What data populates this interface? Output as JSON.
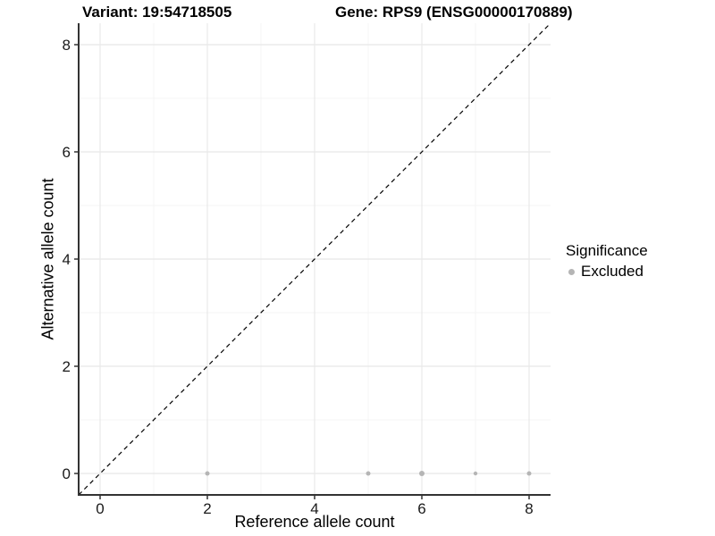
{
  "header": {
    "variant_title": "Variant: 19:54718505",
    "gene_title": "Gene: RPS9 (ENSG00000170889)"
  },
  "chart_data": {
    "type": "scatter",
    "xlabel": "Reference allele count",
    "ylabel": "Alternative allele count",
    "xlim": [
      -0.4,
      8.4
    ],
    "ylim": [
      -0.4,
      8.4
    ],
    "x_ticks": [
      0,
      2,
      4,
      6,
      8
    ],
    "y_ticks": [
      0,
      2,
      4,
      6,
      8
    ],
    "x_minor_gridlines": [
      1,
      3,
      5,
      7
    ],
    "y_minor_gridlines": [
      1,
      3,
      5,
      7
    ],
    "grid": true,
    "legend_position": "right",
    "identity_line": {
      "type": "y=x",
      "style": "dashed",
      "color": "#000000"
    },
    "series": [
      {
        "name": "Excluded",
        "color": "#b5b5b5",
        "points": [
          {
            "x": 2,
            "y": 0,
            "r": 2.5
          },
          {
            "x": 5,
            "y": 0,
            "r": 2.5
          },
          {
            "x": 6,
            "y": 0,
            "r": 3.0
          },
          {
            "x": 7,
            "y": 0,
            "r": 2.2
          },
          {
            "x": 8,
            "y": 0,
            "r": 2.5
          }
        ]
      }
    ],
    "legend": {
      "title": "Significance",
      "items": [
        {
          "label": "Excluded",
          "color": "#b5b5b5"
        }
      ]
    }
  },
  "colors": {
    "background": "#ffffff",
    "grid_major": "#e8e8e8",
    "grid_minor": "#f4f4f4",
    "axis_line": "#333333",
    "tick_label": "#1a1a1a",
    "point": "#b5b5b5"
  }
}
